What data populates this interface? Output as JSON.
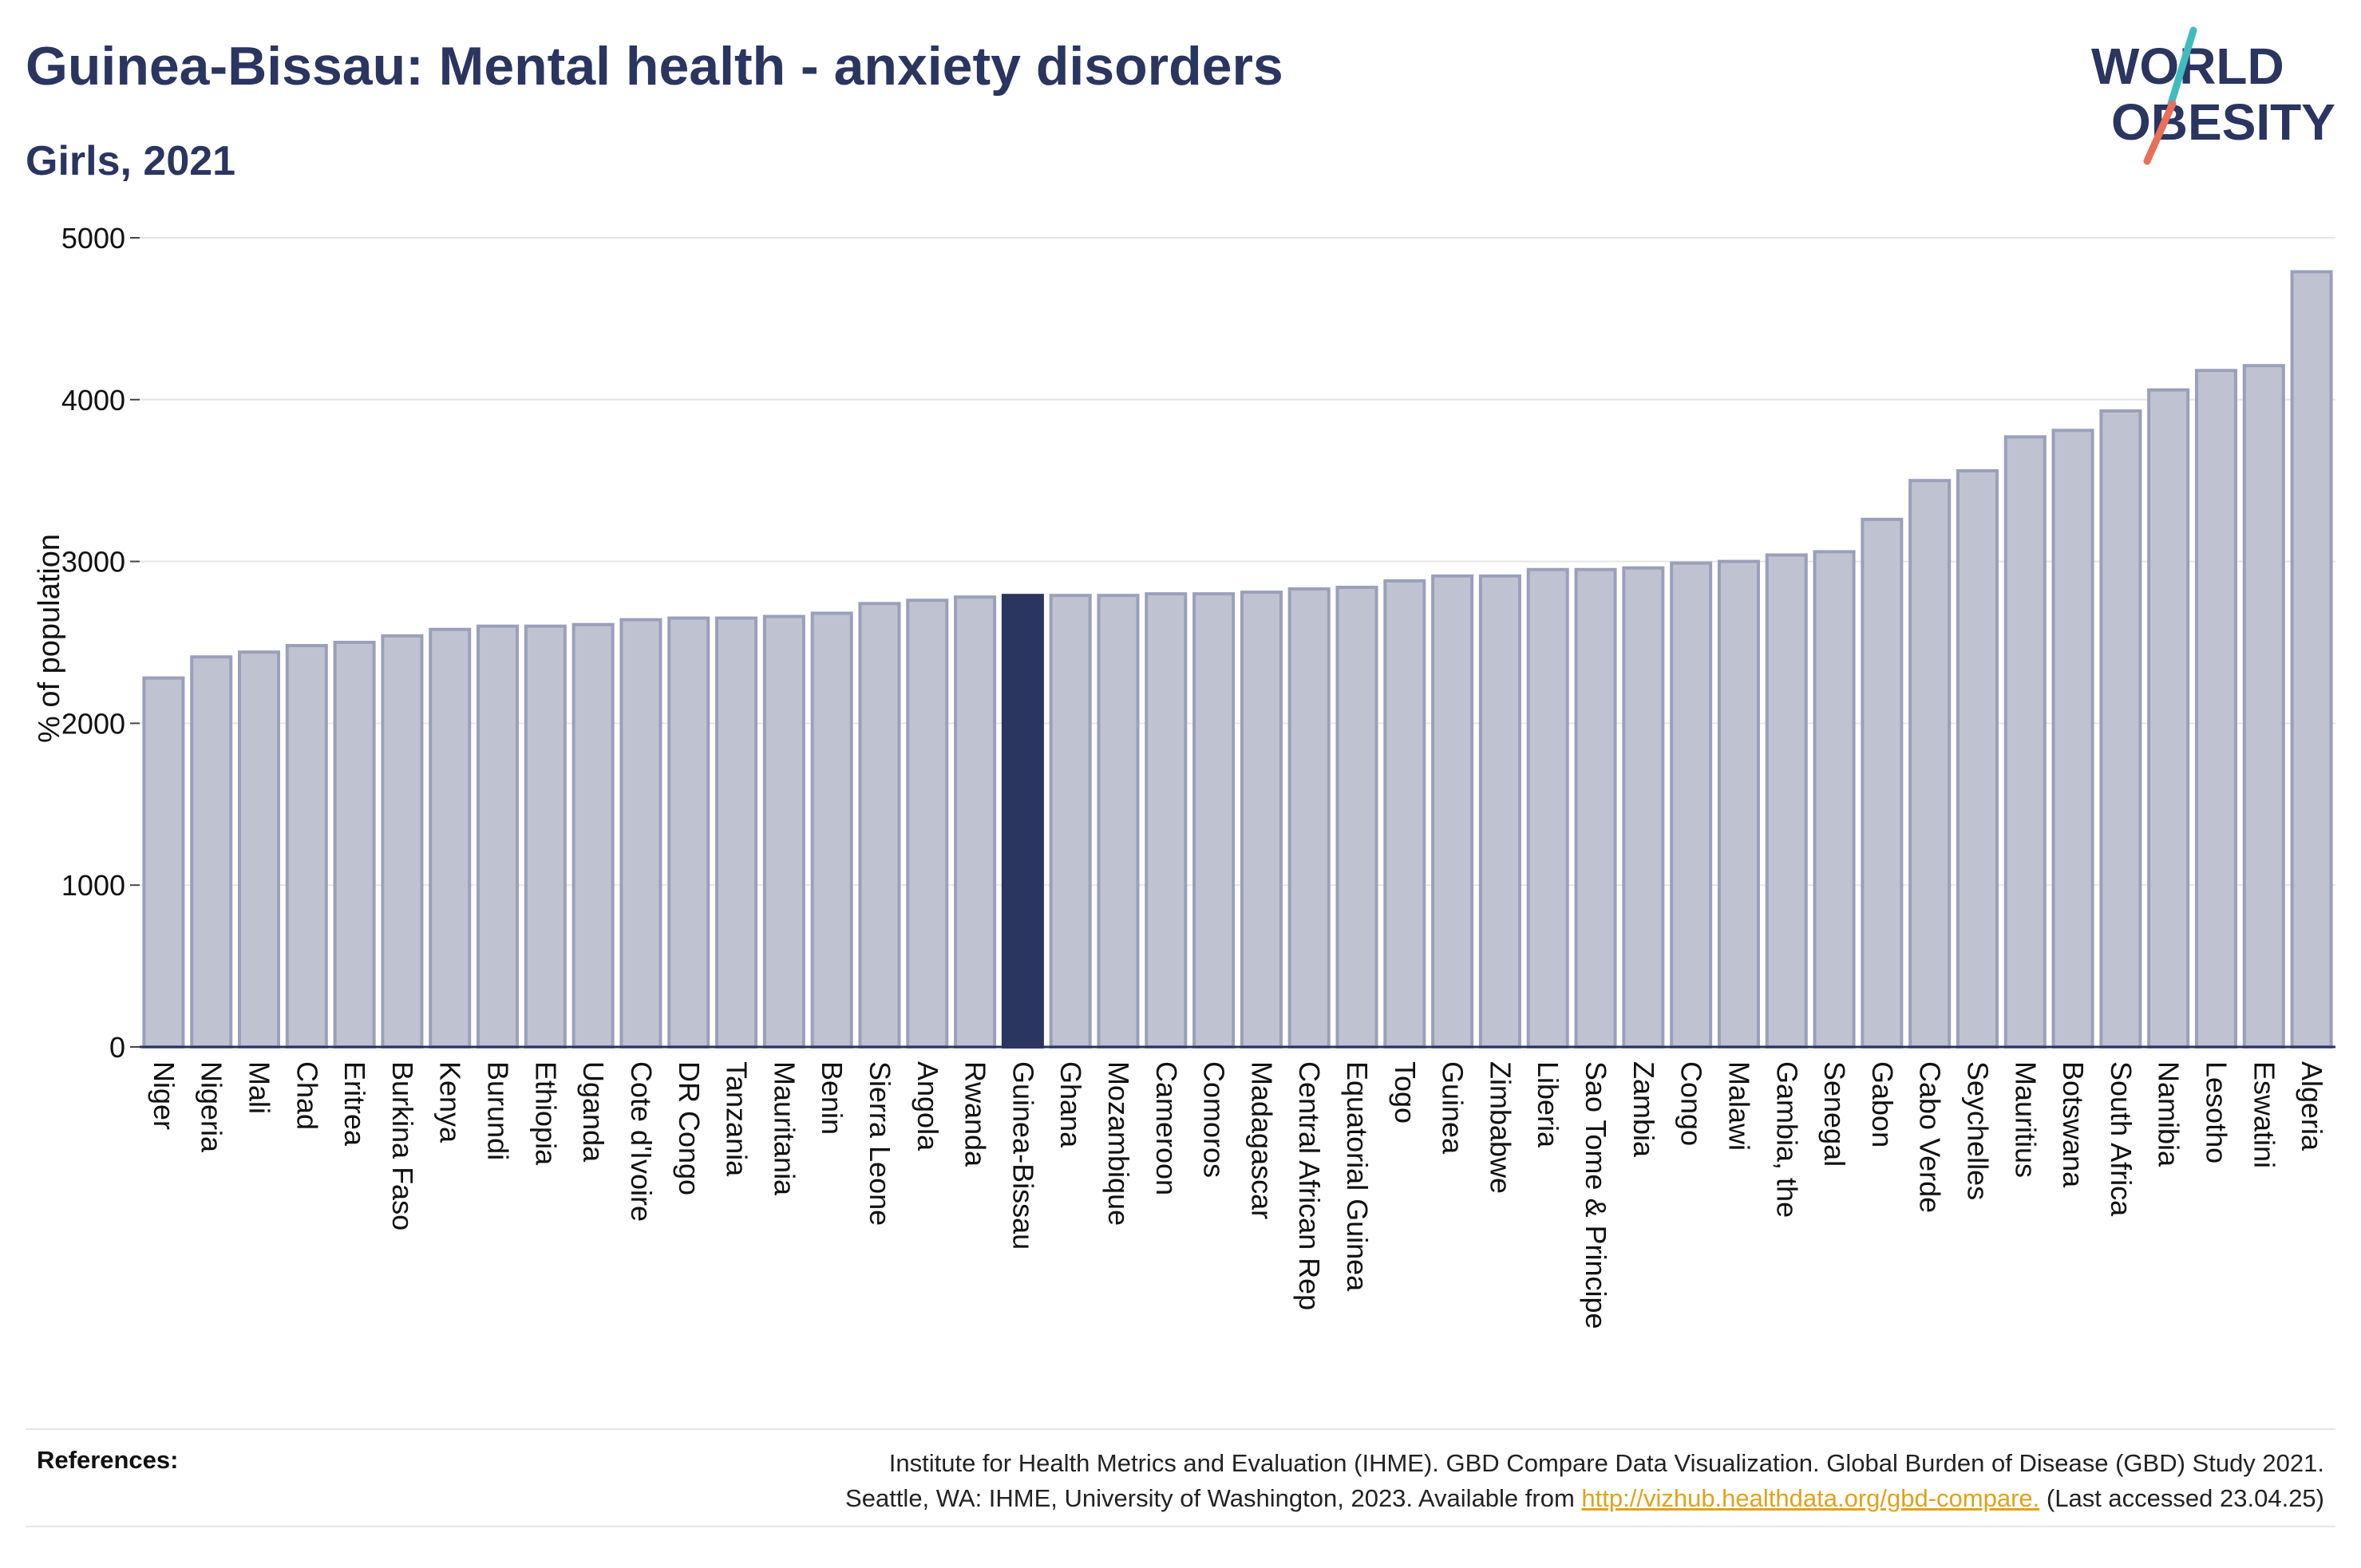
{
  "title": "Guinea-Bissau: Mental health - anxiety disorders",
  "subtitle": "Girls, 2021",
  "logo": {
    "line1": "WORLD",
    "line2": "OBESITY"
  },
  "colors": {
    "bar": "#bfc3d1",
    "bar_border": "#9aa0ba",
    "highlight": "#2a3560",
    "grid": "#e6e6e6",
    "text": "#2a3560",
    "link": "#e0a21a"
  },
  "chart_data": {
    "type": "bar",
    "ylabel": "% of population",
    "xlabel": "",
    "ylim": [
      0,
      5000
    ],
    "yticks": [
      0,
      1000,
      2000,
      3000,
      4000,
      5000
    ],
    "grid": true,
    "highlight": "Guinea-Bissau",
    "categories": [
      "Niger",
      "Nigeria",
      "Mali",
      "Chad",
      "Eritrea",
      "Burkina Faso",
      "Kenya",
      "Burundi",
      "Ethiopia",
      "Uganda",
      "Cote d'Ivoire",
      "DR Congo",
      "Tanzania",
      "Mauritania",
      "Benin",
      "Sierra Leone",
      "Angola",
      "Rwanda",
      "Guinea-Bissau",
      "Ghana",
      "Mozambique",
      "Cameroon",
      "Comoros",
      "Madagascar",
      "Central African Rep",
      "Equatorial Guinea",
      "Togo",
      "Guinea",
      "Zimbabwe",
      "Liberia",
      "Sao Tome & Principe",
      "Zambia",
      "Congo",
      "Malawi",
      "Gambia, the",
      "Senegal",
      "Gabon",
      "Cabo Verde",
      "Seychelles",
      "Mauritius",
      "Botswana",
      "South Africa",
      "Namibia",
      "Lesotho",
      "Eswatini",
      "Algeria"
    ],
    "values": [
      2280,
      2410,
      2440,
      2480,
      2500,
      2540,
      2580,
      2600,
      2600,
      2610,
      2640,
      2650,
      2650,
      2660,
      2680,
      2740,
      2760,
      2780,
      2790,
      2790,
      2790,
      2800,
      2800,
      2810,
      2830,
      2840,
      2880,
      2910,
      2910,
      2950,
      2950,
      2960,
      2990,
      3000,
      3040,
      3060,
      3260,
      3500,
      3560,
      3770,
      3810,
      3930,
      4060,
      4180,
      4210,
      4790
    ]
  },
  "references": {
    "label": "References:",
    "line1": "Institute for Health Metrics and Evaluation (IHME). GBD Compare Data Visualization. Global Burden of Disease (GBD) Study 2021.",
    "line2_pre": "Seattle, WA: IHME, University of Washington, 2023. Available from ",
    "link": "http://vizhub.healthdata.org/gbd-compare.",
    "line2_post": " (Last accessed 23.04.25)"
  }
}
